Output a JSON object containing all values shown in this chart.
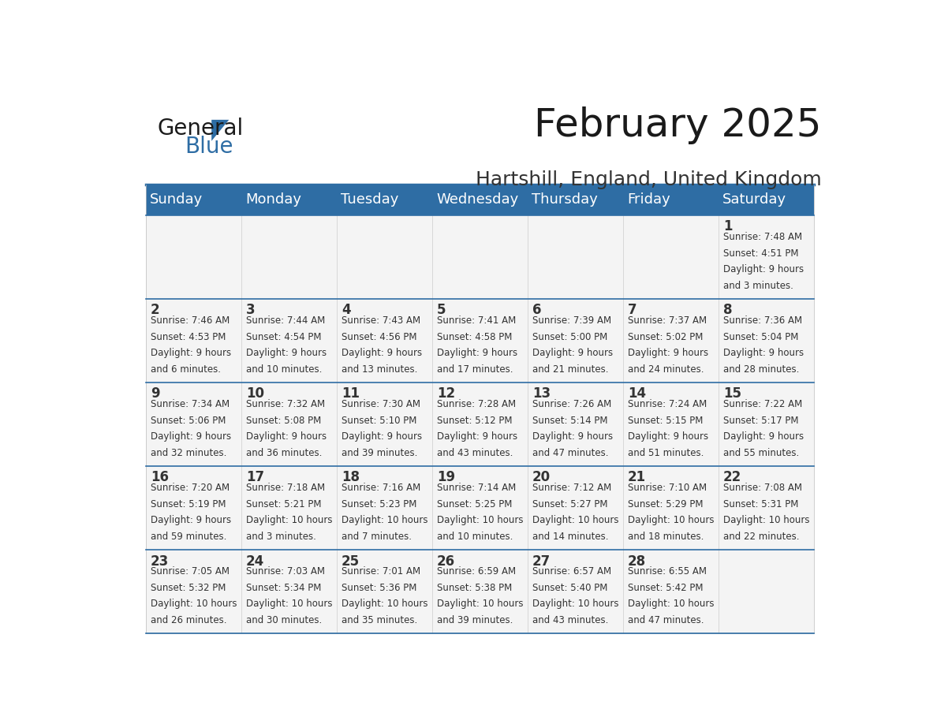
{
  "title": "February 2025",
  "subtitle": "Hartshill, England, United Kingdom",
  "header_bg": "#2E6DA4",
  "header_text": "#FFFFFF",
  "cell_bg": "#F4F4F4",
  "border_color": "#2E6DA4",
  "row_line_color": "#2E6DA4",
  "text_color": "#333333",
  "day_headers": [
    "Sunday",
    "Monday",
    "Tuesday",
    "Wednesday",
    "Thursday",
    "Friday",
    "Saturday"
  ],
  "calendar_data": [
    [
      null,
      null,
      null,
      null,
      null,
      null,
      {
        "day": 1,
        "sunrise": "7:48 AM",
        "sunset": "4:51 PM",
        "daylight": "9 hours and 3 minutes."
      }
    ],
    [
      {
        "day": 2,
        "sunrise": "7:46 AM",
        "sunset": "4:53 PM",
        "daylight": "9 hours and 6 minutes."
      },
      {
        "day": 3,
        "sunrise": "7:44 AM",
        "sunset": "4:54 PM",
        "daylight": "9 hours and 10 minutes."
      },
      {
        "day": 4,
        "sunrise": "7:43 AM",
        "sunset": "4:56 PM",
        "daylight": "9 hours and 13 minutes."
      },
      {
        "day": 5,
        "sunrise": "7:41 AM",
        "sunset": "4:58 PM",
        "daylight": "9 hours and 17 minutes."
      },
      {
        "day": 6,
        "sunrise": "7:39 AM",
        "sunset": "5:00 PM",
        "daylight": "9 hours and 21 minutes."
      },
      {
        "day": 7,
        "sunrise": "7:37 AM",
        "sunset": "5:02 PM",
        "daylight": "9 hours and 24 minutes."
      },
      {
        "day": 8,
        "sunrise": "7:36 AM",
        "sunset": "5:04 PM",
        "daylight": "9 hours and 28 minutes."
      }
    ],
    [
      {
        "day": 9,
        "sunrise": "7:34 AM",
        "sunset": "5:06 PM",
        "daylight": "9 hours and 32 minutes."
      },
      {
        "day": 10,
        "sunrise": "7:32 AM",
        "sunset": "5:08 PM",
        "daylight": "9 hours and 36 minutes."
      },
      {
        "day": 11,
        "sunrise": "7:30 AM",
        "sunset": "5:10 PM",
        "daylight": "9 hours and 39 minutes."
      },
      {
        "day": 12,
        "sunrise": "7:28 AM",
        "sunset": "5:12 PM",
        "daylight": "9 hours and 43 minutes."
      },
      {
        "day": 13,
        "sunrise": "7:26 AM",
        "sunset": "5:14 PM",
        "daylight": "9 hours and 47 minutes."
      },
      {
        "day": 14,
        "sunrise": "7:24 AM",
        "sunset": "5:15 PM",
        "daylight": "9 hours and 51 minutes."
      },
      {
        "day": 15,
        "sunrise": "7:22 AM",
        "sunset": "5:17 PM",
        "daylight": "9 hours and 55 minutes."
      }
    ],
    [
      {
        "day": 16,
        "sunrise": "7:20 AM",
        "sunset": "5:19 PM",
        "daylight": "9 hours and 59 minutes."
      },
      {
        "day": 17,
        "sunrise": "7:18 AM",
        "sunset": "5:21 PM",
        "daylight": "10 hours and 3 minutes."
      },
      {
        "day": 18,
        "sunrise": "7:16 AM",
        "sunset": "5:23 PM",
        "daylight": "10 hours and 7 minutes."
      },
      {
        "day": 19,
        "sunrise": "7:14 AM",
        "sunset": "5:25 PM",
        "daylight": "10 hours and 10 minutes."
      },
      {
        "day": 20,
        "sunrise": "7:12 AM",
        "sunset": "5:27 PM",
        "daylight": "10 hours and 14 minutes."
      },
      {
        "day": 21,
        "sunrise": "7:10 AM",
        "sunset": "5:29 PM",
        "daylight": "10 hours and 18 minutes."
      },
      {
        "day": 22,
        "sunrise": "7:08 AM",
        "sunset": "5:31 PM",
        "daylight": "10 hours and 22 minutes."
      }
    ],
    [
      {
        "day": 23,
        "sunrise": "7:05 AM",
        "sunset": "5:32 PM",
        "daylight": "10 hours and 26 minutes."
      },
      {
        "day": 24,
        "sunrise": "7:03 AM",
        "sunset": "5:34 PM",
        "daylight": "10 hours and 30 minutes."
      },
      {
        "day": 25,
        "sunrise": "7:01 AM",
        "sunset": "5:36 PM",
        "daylight": "10 hours and 35 minutes."
      },
      {
        "day": 26,
        "sunrise": "6:59 AM",
        "sunset": "5:38 PM",
        "daylight": "10 hours and 39 minutes."
      },
      {
        "day": 27,
        "sunrise": "6:57 AM",
        "sunset": "5:40 PM",
        "daylight": "10 hours and 43 minutes."
      },
      {
        "day": 28,
        "sunrise": "6:55 AM",
        "sunset": "5:42 PM",
        "daylight": "10 hours and 47 minutes."
      },
      null
    ]
  ],
  "logo_text_general": "General",
  "logo_text_blue": "Blue",
  "logo_color_general": "#1a1a1a",
  "logo_color_blue": "#2E6DA4",
  "title_fontsize": 36,
  "subtitle_fontsize": 18,
  "header_fontsize": 13,
  "day_num_fontsize": 12,
  "cell_text_fontsize": 8.5
}
